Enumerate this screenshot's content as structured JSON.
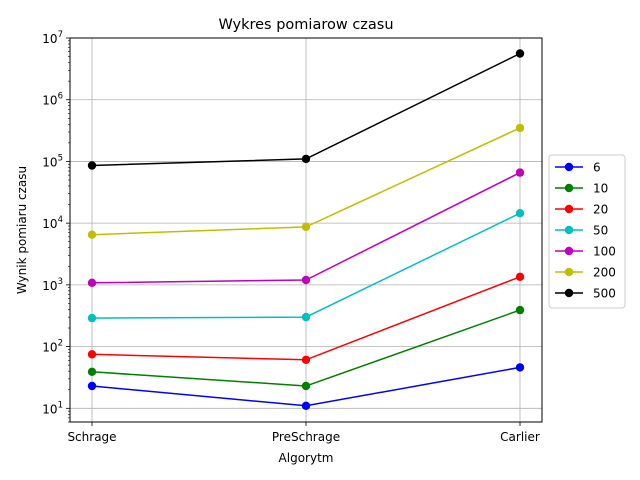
{
  "chart_data": {
    "type": "line",
    "title": "Wykres pomiarow czasu",
    "xlabel": "Algorytm",
    "ylabel": "Wynik pomiaru czasu",
    "yscale": "log",
    "ylim": [
      6,
      10000000
    ],
    "grid": true,
    "legend_position": "right-outside",
    "categories": [
      "Schrage",
      "PreSchrage",
      "Carlier"
    ],
    "y_ticks": [
      {
        "value": 10,
        "base": "10",
        "exp": "1"
      },
      {
        "value": 100,
        "base": "10",
        "exp": "2"
      },
      {
        "value": 1000,
        "base": "10",
        "exp": "3"
      },
      {
        "value": 10000,
        "base": "10",
        "exp": "4"
      },
      {
        "value": 100000,
        "base": "10",
        "exp": "5"
      },
      {
        "value": 1000000,
        "base": "10",
        "exp": "6"
      },
      {
        "value": 10000000,
        "base": "10",
        "exp": "7"
      }
    ],
    "series": [
      {
        "name": "6",
        "color": "#0000ff",
        "values": [
          23,
          11,
          46
        ]
      },
      {
        "name": "10",
        "color": "#008000",
        "values": [
          39,
          23,
          390
        ]
      },
      {
        "name": "20",
        "color": "#ff0000",
        "values": [
          75,
          61,
          1350
        ]
      },
      {
        "name": "50",
        "color": "#00bfbf",
        "values": [
          290,
          300,
          14500
        ]
      },
      {
        "name": "100",
        "color": "#bf00bf",
        "values": [
          1080,
          1200,
          66000
        ]
      },
      {
        "name": "200",
        "color": "#bfbf00",
        "values": [
          6500,
          8700,
          350000
        ]
      },
      {
        "name": "500",
        "color": "#000000",
        "values": [
          86000,
          110000,
          5600000
        ]
      }
    ]
  }
}
